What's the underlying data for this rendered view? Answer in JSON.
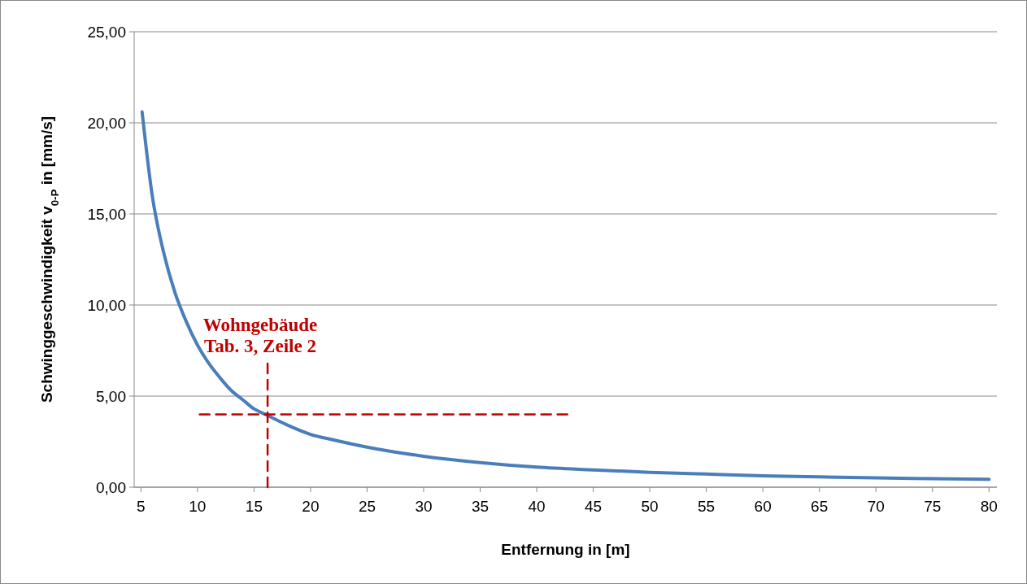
{
  "chart_data": {
    "type": "line",
    "xlabel": "Entfernung in [m]",
    "ylabel": "Schwinggeschwindigkeit v$_{0-P}$ in [mm/s]",
    "xlim": [
      4.4,
      80.7
    ],
    "xticks": [
      5,
      10,
      15,
      20,
      25,
      30,
      35,
      40,
      45,
      50,
      55,
      60,
      65,
      70,
      75,
      80
    ],
    "ylim": [
      0,
      25
    ],
    "yticks": [
      {
        "value": 0,
        "label": "0,00"
      },
      {
        "value": 5,
        "label": "5,00"
      },
      {
        "value": 10,
        "label": "10,00"
      },
      {
        "value": 15,
        "label": "15,00"
      },
      {
        "value": 20,
        "label": "20,00"
      },
      {
        "value": 25,
        "label": "25,00"
      }
    ],
    "grid": "y",
    "series": [
      {
        "color": "#4a7ebb",
        "line_style": "solid",
        "x": [
          5.1,
          6,
          7,
          8,
          9,
          10,
          11,
          12,
          13,
          14,
          15,
          16,
          18,
          20,
          22,
          25,
          30,
          35,
          40,
          45,
          50,
          55,
          60,
          65,
          70,
          75,
          80
        ],
        "values": [
          20.6,
          16.0,
          12.9,
          10.7,
          9.1,
          7.8,
          6.8,
          6.0,
          5.3,
          4.8,
          4.3,
          4.0,
          3.4,
          2.9,
          2.6,
          2.2,
          1.7,
          1.35,
          1.1,
          0.95,
          0.82,
          0.72,
          0.63,
          0.57,
          0.51,
          0.47,
          0.43
        ]
      },
      {
        "color": "#c00000",
        "line_style": "dashed",
        "x": [
          10.2,
          43
        ],
        "values": [
          4.0,
          4.0
        ]
      },
      {
        "color": "#c00000",
        "line_style": "dashed",
        "x": [
          16.2,
          16.2
        ],
        "values": [
          0,
          6.9
        ]
      }
    ],
    "annotations": [
      "Wohngebäude\nTab. 3, Zeile 2"
    ]
  }
}
